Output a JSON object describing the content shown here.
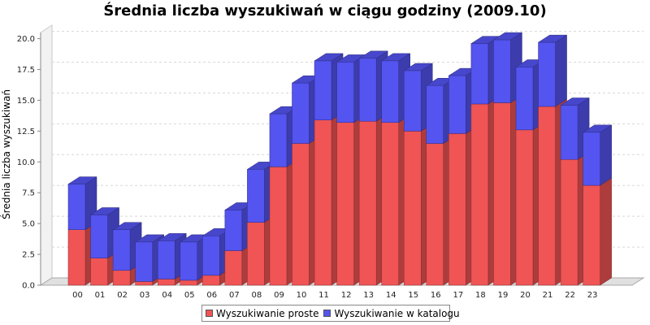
{
  "chart_data": {
    "type": "bar",
    "stacked": true,
    "title": "Średnia liczba wyszukiwań w ciągu godziny (2009.10)",
    "xlabel": "",
    "ylabel": "Średnia liczba wyszukiwań",
    "ylim": [
      0,
      20.5
    ],
    "yticks": [
      "0.0",
      "2.5",
      "5.0",
      "7.5",
      "10.0",
      "12.5",
      "15.0",
      "17.5",
      "20.0"
    ],
    "grid": true,
    "legend_position": "bottom",
    "categories": [
      "00",
      "01",
      "02",
      "03",
      "04",
      "05",
      "06",
      "07",
      "08",
      "09",
      "10",
      "11",
      "12",
      "13",
      "14",
      "15",
      "16",
      "17",
      "18",
      "19",
      "20",
      "21",
      "22",
      "23"
    ],
    "series": [
      {
        "name": "Wyszukiwanie proste",
        "color": "#f05454",
        "values": [
          4.5,
          2.2,
          1.2,
          0.3,
          0.5,
          0.4,
          0.8,
          2.8,
          5.1,
          9.6,
          11.5,
          13.4,
          13.2,
          13.3,
          13.2,
          12.5,
          11.5,
          12.3,
          14.7,
          14.8,
          12.6,
          14.5,
          10.2,
          8.1
        ]
      },
      {
        "name": "Wyszukiwanie w katalogu",
        "color": "#5454f0",
        "values": [
          3.7,
          3.5,
          3.3,
          3.2,
          3.1,
          3.1,
          3.2,
          3.3,
          4.3,
          4.3,
          4.9,
          4.8,
          4.9,
          5.1,
          5.0,
          4.9,
          4.7,
          4.7,
          4.9,
          5.1,
          5.1,
          5.2,
          4.4,
          4.3
        ]
      }
    ]
  }
}
